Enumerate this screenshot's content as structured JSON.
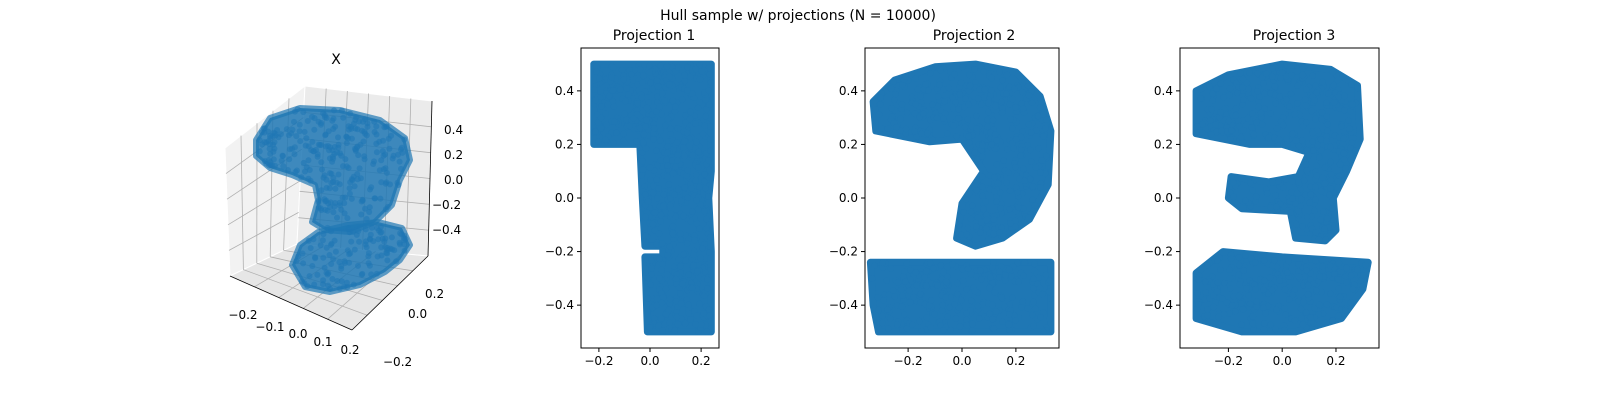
{
  "figure": {
    "suptitle": "Hull sample w/ projections (N = 10000)",
    "color": "#1f77b4"
  },
  "chart_data": [
    {
      "type": "scatter",
      "projection": "3d",
      "title": "X",
      "xlabel": "",
      "ylabel": "",
      "zlabel": "",
      "xlim": [
        -0.25,
        0.25
      ],
      "ylim": [
        -0.3,
        0.35
      ],
      "zlim": [
        -0.5,
        0.5
      ],
      "xticks": [
        "−0.2",
        "−0.1",
        "0.0",
        "0.1",
        "0.2"
      ],
      "yticks": [
        "−0.2",
        "0.0",
        "0.2"
      ],
      "zticks": [
        "−0.4",
        "−0.2",
        "0.0",
        "0.2",
        "0.4"
      ],
      "grid": true,
      "n_points": 10000,
      "shape": "3D hull sample; point cloud resembles a folded '2'/'3' shape",
      "series": [
        {
          "values": [
            [
              -0.2,
              0.1,
              0.4
            ],
            [
              -0.1,
              0.1,
              0.45
            ],
            [
              0.0,
              0.1,
              0.45
            ],
            [
              0.1,
              0.1,
              0.4
            ],
            [
              0.2,
              0.1,
              0.3
            ],
            [
              0.15,
              0.05,
              0.2
            ],
            [
              0.05,
              0.0,
              0.1
            ],
            [
              0.0,
              0.0,
              0.0
            ],
            [
              0.05,
              0.0,
              -0.1
            ],
            [
              0.15,
              0.05,
              -0.2
            ],
            [
              -0.1,
              -0.05,
              -0.3
            ],
            [
              0.0,
              -0.05,
              -0.4
            ],
            [
              0.1,
              -0.05,
              -0.45
            ],
            [
              0.2,
              0.0,
              -0.4
            ]
          ]
        }
      ]
    },
    {
      "type": "scatter",
      "title": "Projection 1",
      "xlabel": "",
      "ylabel": "",
      "xlim": [
        -0.27,
        0.27
      ],
      "ylim": [
        -0.56,
        0.56
      ],
      "xticks": [
        -0.2,
        0.0,
        0.2
      ],
      "yticks": [
        -0.4,
        -0.2,
        0.0,
        0.2,
        0.4
      ],
      "grid": false,
      "n_points": 10000,
      "shape": "digit '1'",
      "series": [
        {
          "values": [
            [
              -0.21,
              0.48
            ],
            [
              -0.1,
              0.48
            ],
            [
              0.0,
              0.48
            ],
            [
              0.1,
              0.48
            ],
            [
              0.22,
              0.48
            ],
            [
              -0.21,
              0.25
            ],
            [
              -0.05,
              0.22
            ],
            [
              0.0,
              0.2
            ],
            [
              0.1,
              0.2
            ],
            [
              0.22,
              0.2
            ],
            [
              0.0,
              0.0
            ],
            [
              0.22,
              0.0
            ],
            [
              0.0,
              -0.15
            ],
            [
              0.22,
              -0.15
            ],
            [
              0.05,
              -0.22
            ],
            [
              0.22,
              -0.22
            ],
            [
              0.0,
              -0.48
            ],
            [
              0.1,
              -0.48
            ],
            [
              0.22,
              -0.48
            ]
          ]
        }
      ]
    },
    {
      "type": "scatter",
      "title": "Projection 2",
      "xlabel": "",
      "ylabel": "",
      "xlim": [
        -0.36,
        0.36
      ],
      "ylim": [
        -0.56,
        0.56
      ],
      "xticks": [
        -0.2,
        0.0,
        0.2
      ],
      "yticks": [
        -0.4,
        -0.2,
        0.0,
        0.2,
        0.4
      ],
      "grid": false,
      "n_points": 10000,
      "shape": "digit '2'",
      "series": [
        {
          "values": [
            [
              -0.3,
              0.35
            ],
            [
              -0.2,
              0.43
            ],
            [
              -0.05,
              0.48
            ],
            [
              0.1,
              0.47
            ],
            [
              0.22,
              0.42
            ],
            [
              0.3,
              0.28
            ],
            [
              -0.3,
              0.28
            ],
            [
              -0.15,
              0.22
            ],
            [
              0.05,
              0.22
            ],
            [
              0.3,
              0.15
            ],
            [
              0.28,
              0.0
            ],
            [
              0.2,
              -0.1
            ],
            [
              0.08,
              -0.05
            ],
            [
              -0.05,
              -0.1
            ],
            [
              0.0,
              -0.2
            ],
            [
              -0.32,
              -0.25
            ],
            [
              -0.15,
              -0.28
            ],
            [
              0.1,
              -0.25
            ],
            [
              0.32,
              -0.27
            ],
            [
              -0.32,
              -0.48
            ],
            [
              0.0,
              -0.48
            ],
            [
              0.32,
              -0.48
            ]
          ]
        }
      ]
    },
    {
      "type": "scatter",
      "title": "Projection 3",
      "xlabel": "",
      "ylabel": "",
      "xlim": [
        -0.38,
        0.36
      ],
      "ylim": [
        -0.56,
        0.56
      ],
      "xticks": [
        -0.2,
        0.0,
        0.2
      ],
      "yticks": [
        -0.4,
        -0.2,
        0.0,
        0.2,
        0.4
      ],
      "grid": false,
      "n_points": 10000,
      "shape": "digit '3'",
      "series": [
        {
          "values": [
            [
              -0.3,
              0.4
            ],
            [
              -0.15,
              0.46
            ],
            [
              0.0,
              0.48
            ],
            [
              0.15,
              0.47
            ],
            [
              0.28,
              0.4
            ],
            [
              -0.3,
              0.25
            ],
            [
              -0.1,
              0.2
            ],
            [
              0.0,
              0.18
            ],
            [
              0.28,
              0.18
            ],
            [
              0.2,
              0.05
            ],
            [
              -0.15,
              0.05
            ],
            [
              0.0,
              0.0
            ],
            [
              0.2,
              -0.05
            ],
            [
              0.0,
              -0.15
            ],
            [
              0.28,
              -0.25
            ],
            [
              -0.3,
              -0.3
            ],
            [
              -0.1,
              -0.25
            ],
            [
              0.1,
              -0.25
            ],
            [
              0.32,
              -0.28
            ],
            [
              -0.32,
              -0.45
            ],
            [
              0.0,
              -0.48
            ],
            [
              0.25,
              -0.4
            ]
          ]
        }
      ]
    }
  ]
}
